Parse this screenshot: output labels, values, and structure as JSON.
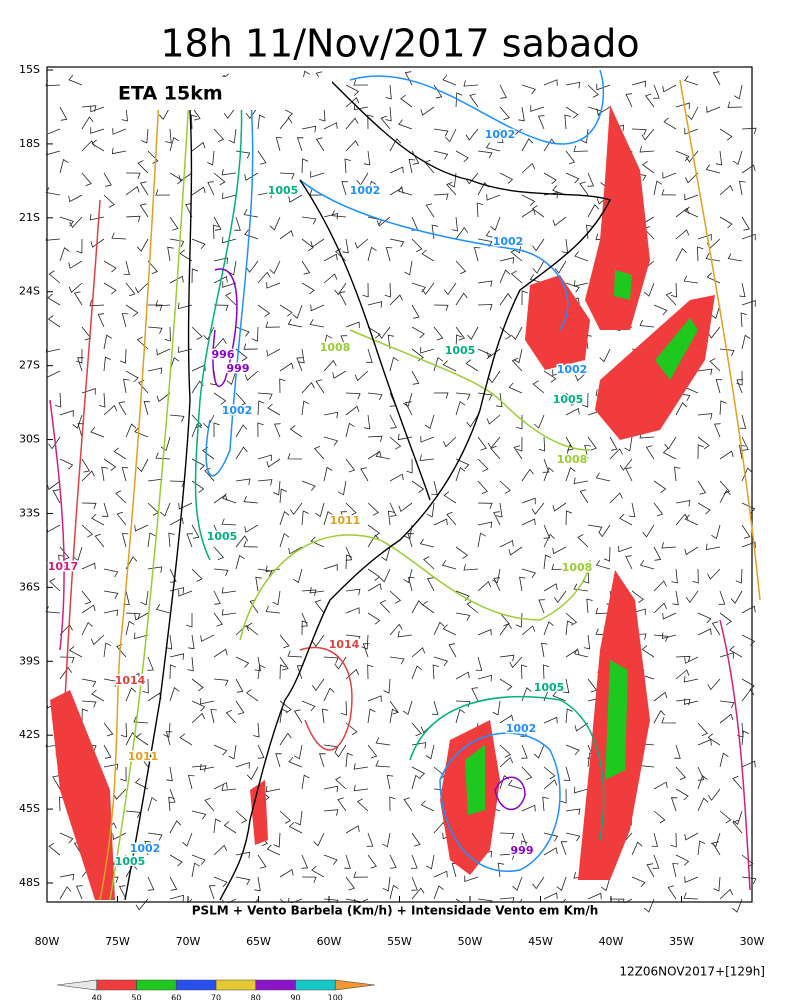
{
  "header": {
    "title": "18h 11/Nov/2017 sabado"
  },
  "map": {
    "model": "ETA 15km",
    "lat_labels": [
      "15S",
      "18S",
      "21S",
      "24S",
      "27S",
      "30S",
      "33S",
      "36S",
      "39S",
      "42S",
      "45S",
      "48S"
    ],
    "lon_labels": [
      "80W",
      "75W",
      "70W",
      "65W",
      "60W",
      "55W",
      "50W",
      "45W",
      "40W",
      "35W",
      "30W"
    ],
    "caption": "PSLM + Vento Barbela (Km/h) + Intensidade Vento em Km/h",
    "isobar_labels": [
      {
        "text": "1002",
        "color": "#1e90ff"
      },
      {
        "text": "1002",
        "color": "#1e90ff"
      },
      {
        "text": "1005",
        "color": "#00b080"
      },
      {
        "text": "1002",
        "color": "#1e90ff"
      },
      {
        "text": "1005",
        "color": "#00b080"
      },
      {
        "text": "1008",
        "color": "#9acd32"
      },
      {
        "text": "996",
        "color": "#8a00c8"
      },
      {
        "text": "999",
        "color": "#8a00c8"
      },
      {
        "text": "1002",
        "color": "#1e90ff"
      },
      {
        "text": "1002",
        "color": "#1e90ff"
      },
      {
        "text": "1005",
        "color": "#00b080"
      },
      {
        "text": "1008",
        "color": "#9acd32"
      },
      {
        "text": "1011",
        "color": "#e0a020"
      },
      {
        "text": "1005",
        "color": "#00b080"
      },
      {
        "text": "1017",
        "color": "#d0207f"
      },
      {
        "text": "1008",
        "color": "#9acd32"
      },
      {
        "text": "1014",
        "color": "#e04040"
      },
      {
        "text": "1014",
        "color": "#e04040"
      },
      {
        "text": "1005",
        "color": "#00b080"
      },
      {
        "text": "1002",
        "color": "#1e90ff"
      },
      {
        "text": "1011",
        "color": "#e0a020"
      },
      {
        "text": "999",
        "color": "#8a00c8"
      },
      {
        "text": "1002",
        "color": "#1e90ff"
      },
      {
        "text": "1005",
        "color": "#00b080"
      }
    ]
  },
  "colorbar": {
    "labels": [
      "40",
      "50",
      "60",
      "70",
      "80",
      "90",
      "100"
    ],
    "colors": [
      "#e8e8e8",
      "#f03c3c",
      "#1ec81e",
      "#2850f0",
      "#e6c832",
      "#8c14c8",
      "#14c8c8",
      "#f09632"
    ]
  },
  "footer": {
    "run": "12Z06NOV2017+[129h]"
  }
}
